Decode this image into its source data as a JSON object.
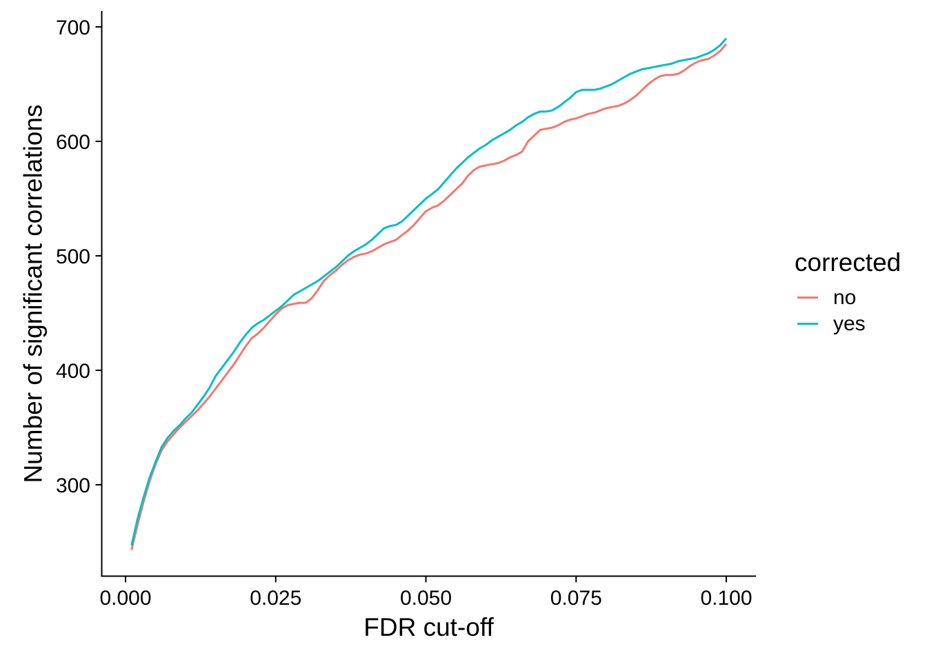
{
  "chart_data": {
    "type": "line",
    "title": "",
    "xlabel": "FDR cut-off",
    "ylabel": "Number of significant correlations",
    "x_tick_values": [
      0,
      0.025,
      0.05,
      0.075,
      0.1
    ],
    "x_tick_labels": [
      "0.000",
      "0.025",
      "0.050",
      "0.075",
      "0.100"
    ],
    "y_tick_values": [
      300,
      400,
      500,
      600,
      700
    ],
    "y_tick_labels": [
      "300",
      "400",
      "500",
      "600",
      "700"
    ],
    "xlim": [
      0,
      0.105
    ],
    "ylim": [
      218,
      712
    ],
    "grid": false,
    "theme": "classic",
    "background": "#FFFFFF",
    "axis_color": "#000000",
    "text_color": "#000000",
    "line_width": 3,
    "legend": {
      "title": "corrected",
      "position": "right",
      "entries": [
        {
          "label": "no",
          "color": "#F8766D"
        },
        {
          "label": "yes",
          "color": "#00BFC4"
        }
      ]
    },
    "x": [
      0.001,
      0.002,
      0.003,
      0.004,
      0.005,
      0.006,
      0.007,
      0.008,
      0.009,
      0.01,
      0.011,
      0.012,
      0.013,
      0.014,
      0.015,
      0.016,
      0.017,
      0.018,
      0.019,
      0.02,
      0.021,
      0.022,
      0.023,
      0.024,
      0.025,
      0.026,
      0.027,
      0.028,
      0.029,
      0.03,
      0.031,
      0.032,
      0.033,
      0.034,
      0.035,
      0.036,
      0.037,
      0.038,
      0.039,
      0.04,
      0.041,
      0.042,
      0.043,
      0.044,
      0.045,
      0.046,
      0.047,
      0.048,
      0.049,
      0.05,
      0.051,
      0.052,
      0.053,
      0.054,
      0.055,
      0.056,
      0.057,
      0.058,
      0.059,
      0.06,
      0.061,
      0.062,
      0.063,
      0.064,
      0.065,
      0.066,
      0.067,
      0.068,
      0.069,
      0.07,
      0.071,
      0.072,
      0.073,
      0.074,
      0.075,
      0.076,
      0.077,
      0.078,
      0.079,
      0.08,
      0.081,
      0.082,
      0.083,
      0.084,
      0.085,
      0.086,
      0.087,
      0.088,
      0.089,
      0.09,
      0.091,
      0.092,
      0.093,
      0.094,
      0.095,
      0.096,
      0.097,
      0.098,
      0.099,
      0.1
    ],
    "series": [
      {
        "name": "no",
        "color": "#F8766D",
        "values": [
          243,
          265,
          285,
          303,
          318,
          330,
          338,
          344,
          350,
          355,
          360,
          365,
          371,
          377,
          384,
          391,
          398,
          405,
          413,
          421,
          428,
          432,
          437,
          443,
          449,
          454,
          457,
          458,
          459,
          459,
          463,
          470,
          478,
          483,
          487,
          492,
          496,
          499,
          501,
          502,
          504,
          507,
          510,
          512,
          514,
          518,
          522,
          527,
          533,
          539,
          542,
          544,
          548,
          553,
          558,
          563,
          570,
          575,
          578,
          579,
          580,
          581,
          583,
          586,
          588,
          591,
          600,
          605,
          610,
          611,
          612,
          614,
          617,
          619,
          620,
          622,
          624,
          625,
          627,
          629,
          630,
          631,
          633,
          636,
          640,
          645,
          650,
          654,
          657,
          658,
          658,
          659,
          662,
          666,
          669,
          671,
          672,
          675,
          679,
          685
        ]
      },
      {
        "name": "yes",
        "color": "#00BFC4",
        "values": [
          247,
          270,
          289,
          306,
          320,
          333,
          341,
          347,
          352,
          358,
          363,
          370,
          377,
          385,
          395,
          402,
          409,
          416,
          424,
          431,
          437,
          441,
          444,
          448,
          452,
          456,
          461,
          466,
          469,
          472,
          475,
          478,
          482,
          486,
          490,
          495,
          500,
          504,
          507,
          510,
          514,
          519,
          524,
          526,
          527,
          530,
          535,
          540,
          545,
          550,
          554,
          558,
          564,
          570,
          576,
          581,
          586,
          590,
          594,
          597,
          601,
          604,
          607,
          610,
          614,
          617,
          621,
          624,
          626,
          626,
          627,
          630,
          634,
          638,
          643,
          645,
          645,
          645,
          646,
          648,
          650,
          653,
          656,
          659,
          661,
          663,
          664,
          665,
          666,
          667,
          668,
          670,
          671,
          672,
          673,
          675,
          677,
          680,
          684,
          690
        ]
      }
    ]
  }
}
